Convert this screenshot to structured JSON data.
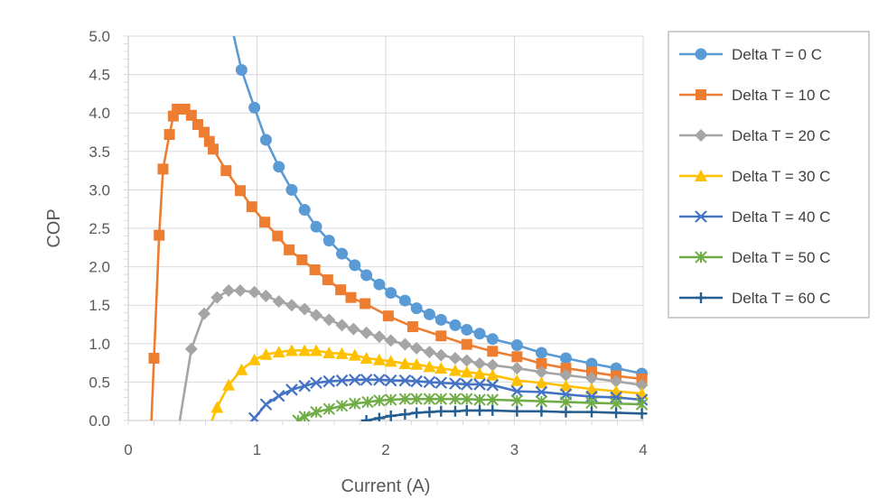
{
  "chart_data": {
    "type": "line",
    "title": "",
    "xlabel": "Current (A)",
    "ylabel": "COP",
    "xlim": [
      0,
      4
    ],
    "ylim": [
      0,
      5
    ],
    "x_ticks": [
      "0",
      "1",
      "2",
      "3",
      "4"
    ],
    "y_ticks": [
      "0.0",
      "0.5",
      "1.0",
      "1.5",
      "2.0",
      "2.5",
      "3.0",
      "3.5",
      "4.0",
      "4.5",
      "5.0"
    ],
    "grid": true,
    "legend_position": "right",
    "series": [
      {
        "name": "Delta T = 0 C",
        "color": "#5B9BD5",
        "marker": "circle",
        "line_start": [
          0.82,
          5.0
        ],
        "x": [
          0.88,
          0.98,
          1.07,
          1.17,
          1.27,
          1.37,
          1.46,
          1.56,
          1.66,
          1.76,
          1.85,
          1.95,
          2.04,
          2.15,
          2.24,
          2.34,
          2.43,
          2.54,
          2.63,
          2.73,
          2.83,
          3.02,
          3.21,
          3.4,
          3.6,
          3.79,
          3.99
        ],
        "y": [
          4.56,
          4.07,
          3.65,
          3.3,
          3.0,
          2.74,
          2.52,
          2.34,
          2.17,
          2.02,
          1.89,
          1.77,
          1.66,
          1.56,
          1.46,
          1.38,
          1.31,
          1.24,
          1.18,
          1.13,
          1.06,
          0.98,
          0.88,
          0.81,
          0.74,
          0.68,
          0.61
        ]
      },
      {
        "name": "Delta T = 10 C",
        "color": "#ED7D31",
        "marker": "square",
        "line_start": [
          0.18,
          0.0
        ],
        "x": [
          0.2,
          0.24,
          0.27,
          0.32,
          0.35,
          0.38,
          0.44,
          0.49,
          0.54,
          0.59,
          0.63,
          0.66,
          0.76,
          0.87,
          0.96,
          1.06,
          1.16,
          1.25,
          1.35,
          1.45,
          1.55,
          1.65,
          1.73,
          1.84,
          2.02,
          2.21,
          2.43,
          2.63,
          2.83,
          3.02,
          3.21,
          3.4,
          3.6,
          3.79,
          3.99
        ],
        "y": [
          0.81,
          2.41,
          3.27,
          3.72,
          3.96,
          4.05,
          4.05,
          3.97,
          3.85,
          3.75,
          3.63,
          3.53,
          3.25,
          2.99,
          2.78,
          2.58,
          2.4,
          2.22,
          2.09,
          1.96,
          1.83,
          1.7,
          1.6,
          1.52,
          1.36,
          1.22,
          1.1,
          0.99,
          0.9,
          0.83,
          0.74,
          0.68,
          0.63,
          0.58,
          0.54
        ]
      },
      {
        "name": "Delta T = 20 C",
        "color": "#A5A5A5",
        "marker": "diamond",
        "line_start": [
          0.4,
          0.0
        ],
        "x": [
          0.49,
          0.59,
          0.69,
          0.78,
          0.87,
          0.98,
          1.07,
          1.17,
          1.27,
          1.37,
          1.46,
          1.56,
          1.66,
          1.75,
          1.85,
          1.95,
          2.04,
          2.15,
          2.24,
          2.34,
          2.43,
          2.54,
          2.63,
          2.73,
          2.83,
          3.02,
          3.21,
          3.4,
          3.6,
          3.79,
          3.99
        ],
        "y": [
          0.93,
          1.39,
          1.6,
          1.69,
          1.69,
          1.67,
          1.62,
          1.55,
          1.5,
          1.45,
          1.37,
          1.31,
          1.24,
          1.19,
          1.14,
          1.09,
          1.04,
          0.99,
          0.94,
          0.89,
          0.85,
          0.81,
          0.78,
          0.74,
          0.72,
          0.68,
          0.63,
          0.59,
          0.55,
          0.51,
          0.46
        ]
      },
      {
        "name": "Delta T = 30 C",
        "color": "#FFC000",
        "marker": "triangle",
        "line_start": [
          0.65,
          0.0
        ],
        "x": [
          0.69,
          0.78,
          0.88,
          0.98,
          1.07,
          1.17,
          1.27,
          1.37,
          1.46,
          1.56,
          1.66,
          1.76,
          1.85,
          1.95,
          2.04,
          2.15,
          2.24,
          2.34,
          2.43,
          2.54,
          2.63,
          2.73,
          2.83,
          3.02,
          3.21,
          3.4,
          3.6,
          3.79,
          3.99
        ],
        "y": [
          0.17,
          0.46,
          0.66,
          0.79,
          0.86,
          0.89,
          0.91,
          0.91,
          0.91,
          0.88,
          0.87,
          0.85,
          0.81,
          0.79,
          0.77,
          0.74,
          0.73,
          0.7,
          0.68,
          0.65,
          0.63,
          0.61,
          0.59,
          0.52,
          0.49,
          0.45,
          0.41,
          0.38,
          0.35
        ]
      },
      {
        "name": "Delta T = 40 C",
        "color": "#4472C4",
        "marker": "x",
        "line_start": [
          0.96,
          0.0
        ],
        "x": [
          0.98,
          1.07,
          1.17,
          1.27,
          1.37,
          1.46,
          1.56,
          1.66,
          1.76,
          1.85,
          1.95,
          2.04,
          2.15,
          2.24,
          2.34,
          2.43,
          2.54,
          2.63,
          2.73,
          2.83,
          3.02,
          3.21,
          3.4,
          3.6,
          3.79,
          3.99
        ],
        "y": [
          0.03,
          0.21,
          0.32,
          0.4,
          0.45,
          0.49,
          0.51,
          0.52,
          0.53,
          0.53,
          0.53,
          0.52,
          0.52,
          0.51,
          0.5,
          0.49,
          0.48,
          0.47,
          0.47,
          0.46,
          0.38,
          0.37,
          0.34,
          0.31,
          0.3,
          0.27
        ]
      },
      {
        "name": "Delta T = 50 C",
        "color": "#70AD47",
        "marker": "star",
        "line_start": [
          1.32,
          0.0
        ],
        "x": [
          1.32,
          1.37,
          1.46,
          1.56,
          1.66,
          1.76,
          1.86,
          1.95,
          2.04,
          2.15,
          2.24,
          2.34,
          2.43,
          2.54,
          2.63,
          2.73,
          2.83,
          3.02,
          3.21,
          3.4,
          3.6,
          3.79,
          3.99
        ],
        "y": [
          0.0,
          0.05,
          0.11,
          0.15,
          0.19,
          0.22,
          0.24,
          0.26,
          0.27,
          0.28,
          0.28,
          0.28,
          0.28,
          0.28,
          0.28,
          0.27,
          0.27,
          0.26,
          0.25,
          0.24,
          0.23,
          0.22,
          0.21
        ]
      },
      {
        "name": "Delta T = 60 C",
        "color": "#255E91",
        "marker": "plus",
        "line_start": [
          1.83,
          0.0
        ],
        "x": [
          1.85,
          1.95,
          2.04,
          2.15,
          2.24,
          2.34,
          2.43,
          2.54,
          2.63,
          2.73,
          2.83,
          3.02,
          3.21,
          3.4,
          3.6,
          3.79,
          3.99
        ],
        "y": [
          0.0,
          0.03,
          0.06,
          0.08,
          0.1,
          0.11,
          0.12,
          0.12,
          0.13,
          0.13,
          0.13,
          0.12,
          0.12,
          0.11,
          0.11,
          0.1,
          0.09
        ]
      }
    ]
  }
}
